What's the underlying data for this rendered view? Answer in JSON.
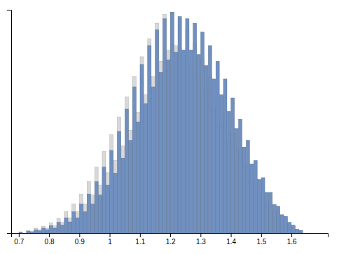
{
  "chart_data": {
    "type": "histogram",
    "bins": [
      0.7,
      0.7125,
      0.725,
      0.7375,
      0.75,
      0.7625,
      0.775,
      0.7875,
      0.8,
      0.8125,
      0.825,
      0.8375,
      0.85,
      0.8625,
      0.875,
      0.8875,
      0.9,
      0.9125,
      0.925,
      0.9375,
      0.95,
      0.9625,
      0.975,
      0.9875,
      1.0,
      1.0125,
      1.025,
      1.0375,
      1.05,
      1.0625,
      1.075,
      1.0875,
      1.1,
      1.1125,
      1.125,
      1.1375,
      1.15,
      1.1625,
      1.175,
      1.1875,
      1.2,
      1.2125,
      1.225,
      1.2375,
      1.25,
      1.2625,
      1.275,
      1.2875,
      1.3,
      1.3125,
      1.325,
      1.3375,
      1.35,
      1.3625,
      1.375,
      1.3875,
      1.4,
      1.4125,
      1.425,
      1.4375,
      1.45,
      1.4625,
      1.475,
      1.4875,
      1.5,
      1.5125,
      1.525,
      1.5375,
      1.55,
      1.5625,
      1.575,
      1.5875,
      1.6,
      1.6125,
      1.625,
      1.6375,
      1.65
    ],
    "series": [
      {
        "color": "#d8d8d8",
        "values": [
          0.005,
          0.0,
          0.012,
          0.008,
          0.022,
          0.015,
          0.03,
          0.022,
          0.045,
          0.032,
          0.065,
          0.048,
          0.095,
          0.068,
          0.13,
          0.095,
          0.175,
          0.13,
          0.23,
          0.17,
          0.295,
          0.215,
          0.365,
          0.27,
          0.44,
          0.325,
          0.52,
          0.39,
          0.61,
          0.46,
          0.7,
          0.54,
          0.79,
          0.62,
          0.87,
          0.7,
          0.94,
          0.77,
          0.98,
          0.82,
          0.99,
          0.84,
          0.96,
          0.8,
          0.91,
          0.76,
          0.85,
          0.7,
          0.78,
          0.635,
          0.7,
          0.565,
          0.615,
          0.49,
          0.53,
          0.415,
          0.45,
          0.35,
          0.375,
          0.29,
          0.305,
          0.235,
          0.24,
          0.18,
          0.185,
          0.14,
          0.14,
          0.1,
          0.1,
          0.07,
          0.065,
          0.04,
          0.03,
          0.015,
          0.01,
          0.0
        ]
      },
      {
        "color": "#7090c0",
        "values": [
          0.003,
          0.0,
          0.008,
          0.005,
          0.014,
          0.01,
          0.022,
          0.015,
          0.032,
          0.022,
          0.048,
          0.035,
          0.068,
          0.05,
          0.095,
          0.068,
          0.13,
          0.095,
          0.175,
          0.13,
          0.23,
          0.17,
          0.295,
          0.215,
          0.37,
          0.268,
          0.455,
          0.335,
          0.555,
          0.415,
          0.655,
          0.498,
          0.755,
          0.58,
          0.84,
          0.655,
          0.91,
          0.72,
          0.96,
          0.775,
          0.99,
          0.81,
          0.97,
          0.82,
          0.96,
          0.82,
          0.94,
          0.8,
          0.9,
          0.75,
          0.84,
          0.69,
          0.77,
          0.62,
          0.69,
          0.545,
          0.605,
          0.468,
          0.51,
          0.385,
          0.415,
          0.31,
          0.325,
          0.24,
          0.248,
          0.182,
          0.182,
          0.128,
          0.12,
          0.082,
          0.075,
          0.048,
          0.035,
          0.018,
          0.012,
          0.0
        ]
      }
    ],
    "xlim": [
      0.675,
      1.72
    ],
    "ylim": [
      0,
      1.0
    ],
    "xticks": [
      0.7,
      0.8,
      0.9,
      1.0,
      1.1,
      1.2,
      1.3,
      1.4,
      1.5,
      1.6
    ],
    "tick_labels": "x"
  }
}
